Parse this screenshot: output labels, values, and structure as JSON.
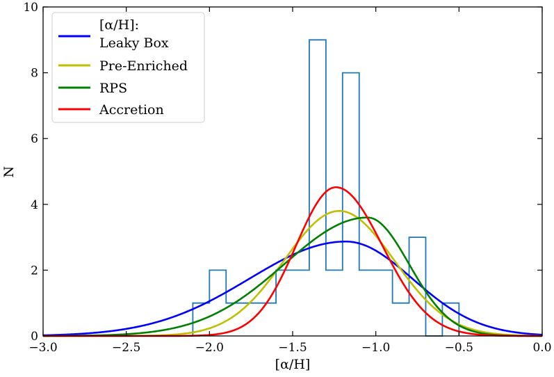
{
  "chart_data": {
    "type": "histogram+line",
    "xlabel": "[α/H]",
    "ylabel": "N",
    "xlim": [
      -3.0,
      0.0
    ],
    "ylim": [
      0,
      10
    ],
    "xticks": [
      -3.0,
      -2.5,
      -2.0,
      -1.5,
      -1.0,
      -0.5,
      0.0
    ],
    "xtick_labels": [
      "−3.0",
      "−2.5",
      "−2.0",
      "−1.5",
      "−1.0",
      "−0.5",
      "0.0"
    ],
    "yticks": [
      0,
      2,
      4,
      6,
      8,
      10
    ],
    "ytick_labels": [
      "0",
      "2",
      "4",
      "6",
      "8",
      "10"
    ],
    "histogram": {
      "color": "#1f77b4",
      "bin_edges": [
        -2.1,
        -2.0,
        -1.9,
        -1.8,
        -1.7,
        -1.6,
        -1.5,
        -1.4,
        -1.3,
        -1.2,
        -1.1,
        -1.0,
        -0.9,
        -0.8,
        -0.7,
        -0.6,
        -0.5
      ],
      "counts": [
        1,
        2,
        1,
        1,
        1,
        2,
        2,
        9,
        2,
        8,
        2,
        2,
        1,
        3,
        0,
        1
      ]
    },
    "series": [
      {
        "name": "Leaky Box",
        "color": "#0000ff",
        "peak_x": -1.18,
        "peak_y": 2.87,
        "sigma_left": 0.58,
        "sigma_right": 0.4
      },
      {
        "name": "Pre-Enriched",
        "color": "#bfbf00",
        "peak_x": -1.22,
        "peak_y": 3.8,
        "sigma_left": 0.33,
        "sigma_right": 0.33
      },
      {
        "name": "RPS",
        "color": "#008000",
        "peak_x": -1.05,
        "peak_y": 3.6,
        "sigma_left": 0.5,
        "sigma_right": 0.25
      },
      {
        "name": "Accretion",
        "color": "#ff0000",
        "peak_x": -1.24,
        "peak_y": 4.52,
        "sigma_left": 0.24,
        "sigma_right": 0.28
      }
    ],
    "legend": {
      "title": "[α/H]:",
      "entries": [
        "Leaky Box",
        "Pre-Enriched",
        "RPS",
        "Accretion"
      ],
      "location": "upper-left"
    }
  }
}
